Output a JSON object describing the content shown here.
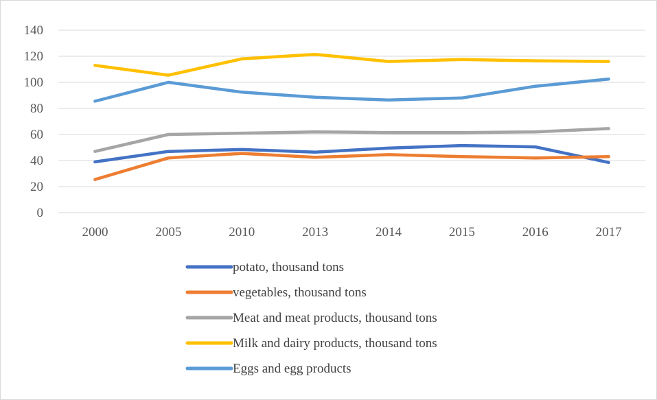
{
  "chart_data": {
    "type": "line",
    "title": "",
    "xlabel": "",
    "ylabel": "",
    "categories": [
      "2000",
      "2005",
      "2010",
      "2013",
      "2014",
      "2015",
      "2016",
      "2017"
    ],
    "ylim": [
      0,
      140
    ],
    "yticks": [
      0,
      20,
      40,
      60,
      80,
      100,
      120,
      140
    ],
    "grid": true,
    "legend_position": "bottom",
    "series": [
      {
        "name": "potato, thousand tons",
        "color": "#4472c4",
        "values": [
          39,
          47,
          48.5,
          46.5,
          49.5,
          51.5,
          50.5,
          38.5
        ]
      },
      {
        "name": "vegetables, thousand tons",
        "color": "#ed7d31",
        "values": [
          25.5,
          42,
          45.5,
          42.5,
          44.5,
          43,
          42,
          43
        ]
      },
      {
        "name": "Meat and meat products, thousand tons",
        "color": "#a5a5a5",
        "values": [
          47,
          60,
          61,
          62,
          61.5,
          61.5,
          62,
          64.5
        ]
      },
      {
        "name": "Milk and dairy products, thousand tons",
        "color": "#ffc000",
        "values": [
          113,
          105.5,
          118,
          121.5,
          116,
          117.5,
          116.5,
          116
        ]
      },
      {
        "name": "Eggs and egg products",
        "color": "#5b9bd5",
        "values": [
          85.5,
          100,
          92.5,
          88.5,
          86.5,
          88,
          97,
          102.5
        ]
      }
    ]
  }
}
